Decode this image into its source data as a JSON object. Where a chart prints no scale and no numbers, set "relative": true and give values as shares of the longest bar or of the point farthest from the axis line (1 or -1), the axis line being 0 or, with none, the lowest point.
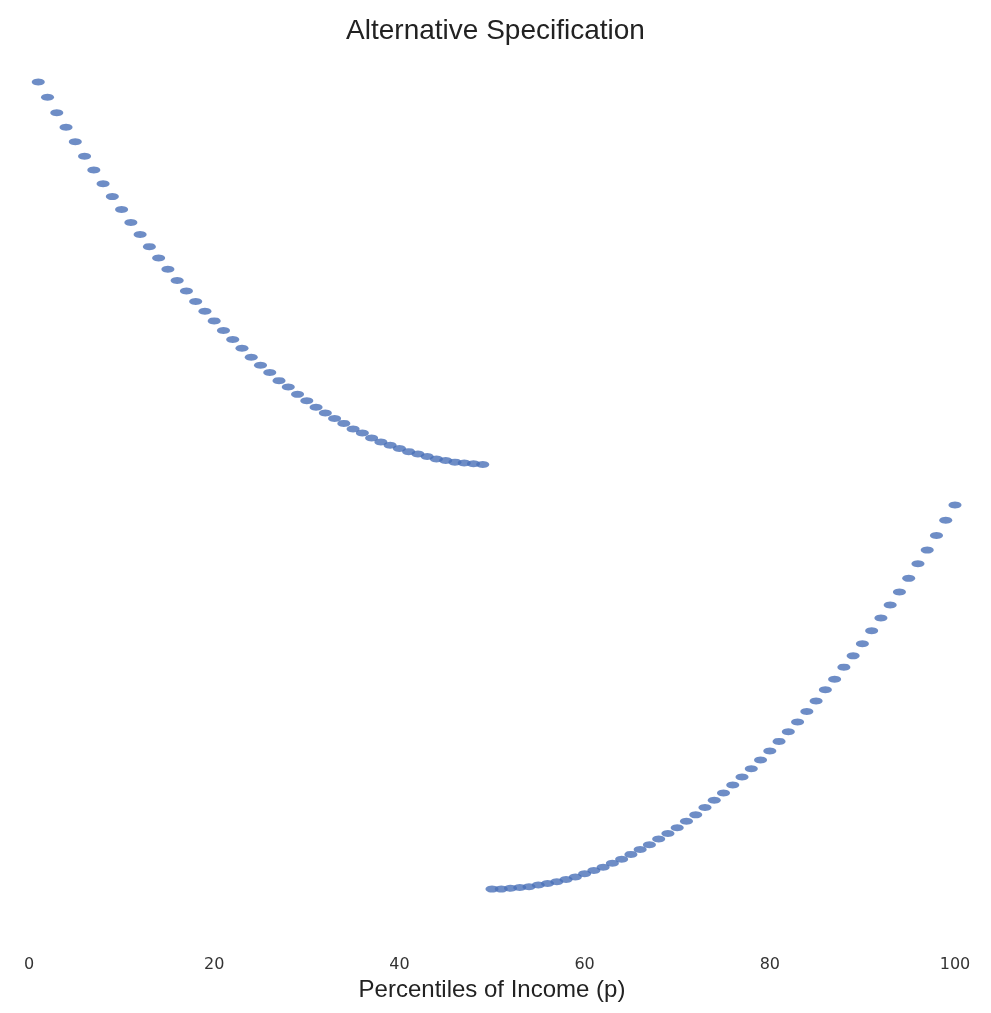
{
  "chart_data": {
    "type": "scatter",
    "title": "Alternative Specification",
    "xlabel": "Percentiles of Income (p)",
    "relative": true,
    "marker": "circle",
    "grid": false,
    "xlim": [
      0,
      100
    ],
    "xticks": [
      0,
      20,
      40,
      60,
      80,
      100
    ],
    "x": [
      1,
      2,
      3,
      4,
      5,
      6,
      7,
      8,
      9,
      10,
      11,
      12,
      13,
      14,
      15,
      16,
      17,
      18,
      19,
      20,
      21,
      22,
      23,
      24,
      25,
      26,
      27,
      28,
      29,
      30,
      31,
      32,
      33,
      34,
      35,
      36,
      37,
      38,
      39,
      40,
      41,
      42,
      43,
      44,
      45,
      46,
      47,
      48,
      49,
      50,
      51,
      52,
      53,
      54,
      55,
      56,
      57,
      58,
      59,
      60,
      61,
      62,
      63,
      64,
      65,
      66,
      67,
      68,
      69,
      70,
      71,
      72,
      73,
      74,
      75,
      76,
      77,
      78,
      79,
      80,
      81,
      82,
      83,
      84,
      85,
      86,
      87,
      88,
      89,
      90,
      91,
      92,
      93,
      94,
      95,
      96,
      97,
      98,
      99,
      100
    ],
    "series": [
      {
        "color": "#4a70b8",
        "values": [
          1.0,
          0.981,
          0.962,
          0.944,
          0.926,
          0.908,
          0.891,
          0.874,
          0.858,
          0.842,
          0.826,
          0.811,
          0.796,
          0.782,
          0.768,
          0.754,
          0.741,
          0.728,
          0.716,
          0.704,
          0.692,
          0.681,
          0.67,
          0.659,
          0.649,
          0.64,
          0.63,
          0.622,
          0.613,
          0.605,
          0.597,
          0.59,
          0.583,
          0.577,
          0.57,
          0.565,
          0.559,
          0.554,
          0.55,
          0.546,
          0.542,
          0.539,
          0.536,
          0.533,
          0.531,
          0.529,
          0.528,
          0.527,
          0.526,
          0.0,
          0.0,
          0.001,
          0.002,
          0.003,
          0.005,
          0.007,
          0.009,
          0.012,
          0.015,
          0.019,
          0.023,
          0.027,
          0.032,
          0.037,
          0.043,
          0.049,
          0.055,
          0.062,
          0.069,
          0.076,
          0.084,
          0.092,
          0.101,
          0.11,
          0.119,
          0.129,
          0.139,
          0.149,
          0.16,
          0.171,
          0.183,
          0.195,
          0.207,
          0.22,
          0.233,
          0.247,
          0.26,
          0.275,
          0.289,
          0.304,
          0.32,
          0.336,
          0.352,
          0.368,
          0.385,
          0.403,
          0.42,
          0.438,
          0.457,
          0.476
        ]
      }
    ]
  }
}
